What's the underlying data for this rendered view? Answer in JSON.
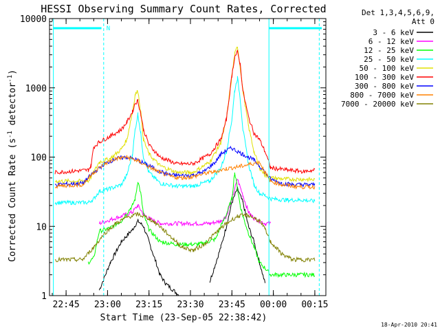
{
  "chart_data": {
    "type": "line",
    "title": "HESSI Observing Summary Count Rates, Corrected",
    "xlabel": "Start Time (23-Sep-05 22:38:42)",
    "ylabel_main": "Corrected Count Rate (s",
    "ylabel_sup1": "-1",
    "ylabel_mid": " detector",
    "ylabel_sup2": "-1",
    "ylabel_end": ")",
    "yscale": "log",
    "ylim": [
      1,
      10000
    ],
    "xlim_minutes": [
      -2,
      98
    ],
    "xtick_labels": [
      "22:45",
      "23:00",
      "23:15",
      "23:30",
      "23:45",
      "00:00",
      "00:15"
    ],
    "xtick_minutes": [
      4,
      19,
      34,
      49,
      64,
      79,
      94
    ],
    "ytick_labels": [
      "1",
      "10",
      "100",
      "1000",
      "10000"
    ],
    "ytick_values": [
      1,
      10,
      100,
      1000,
      10000
    ],
    "legend_header": [
      "Det 1,3,4,5,6,9,",
      "Att 0"
    ],
    "legend_position": "right",
    "footer_date": "18-Apr-2010 20:41",
    "night_label": "N",
    "series": [
      {
        "name": "3 - 6 keV",
        "color": "#000000",
        "x": [
          0,
          14,
          16,
          20,
          24,
          28,
          30,
          32,
          34,
          36,
          38,
          40,
          45,
          52,
          56,
          60,
          62,
          64,
          66,
          68,
          70,
          72,
          74,
          76,
          78
        ],
        "y": [
          null,
          null,
          1.2,
          3,
          6,
          9,
          12,
          10,
          6,
          3.5,
          2,
          1.5,
          1,
          null,
          1.6,
          5,
          10,
          22,
          35,
          22,
          10,
          6,
          3,
          1.5,
          null
        ]
      },
      {
        "name": "6 - 12 keV",
        "color": "#ff00ff",
        "x": [
          16,
          20,
          24,
          28,
          30,
          32,
          34,
          36,
          38,
          42,
          50,
          56,
          60,
          62,
          64,
          66,
          68,
          70,
          72,
          74,
          76,
          78
        ],
        "y": [
          11,
          12.5,
          14,
          16,
          20,
          15,
          13,
          12,
          11,
          11,
          11,
          11,
          12,
          14,
          25,
          48,
          28,
          16,
          13,
          12,
          11,
          11
        ]
      },
      {
        "name": "12 - 25 keV",
        "color": "#00ff00",
        "x": [
          12,
          14,
          16,
          20,
          24,
          28,
          29,
          30,
          31,
          32,
          34,
          38,
          44,
          52,
          58,
          60,
          62,
          64,
          65,
          66,
          67,
          68,
          70,
          72,
          74,
          76,
          78,
          80,
          84,
          90,
          94
        ],
        "y": [
          3,
          3.5,
          8.5,
          9.5,
          12,
          20,
          25,
          45,
          30,
          15,
          9,
          6,
          5.5,
          5.5,
          6.5,
          10,
          15,
          25,
          60,
          35,
          20,
          14,
          8,
          5,
          3,
          2.5,
          2,
          2,
          2,
          2,
          2
        ]
      },
      {
        "name": "25 - 50 keV",
        "color": "#00ffff",
        "x": [
          0,
          12,
          14,
          16,
          20,
          24,
          26,
          28,
          29,
          30,
          31,
          32,
          34,
          38,
          44,
          50,
          56,
          60,
          62,
          64,
          65,
          66,
          67,
          68,
          70,
          72,
          74,
          76,
          78,
          84,
          90,
          94
        ],
        "y": [
          22,
          22,
          25,
          32,
          35,
          40,
          55,
          110,
          250,
          420,
          220,
          100,
          60,
          42,
          38,
          38,
          45,
          70,
          120,
          350,
          900,
          1400,
          700,
          250,
          80,
          40,
          30,
          28,
          25,
          24,
          24,
          23
        ]
      },
      {
        "name": "50 - 100 keV",
        "color": "#e0e000",
        "x": [
          0,
          12,
          14,
          16,
          20,
          24,
          26,
          28,
          29,
          30,
          31,
          32,
          34,
          38,
          44,
          50,
          56,
          60,
          62,
          64,
          65,
          66,
          67,
          68,
          70,
          72,
          74,
          76,
          78,
          84,
          90,
          94
        ],
        "y": [
          45,
          45,
          60,
          85,
          95,
          130,
          180,
          450,
          800,
          900,
          450,
          180,
          110,
          75,
          60,
          60,
          85,
          160,
          350,
          1500,
          3000,
          4000,
          2000,
          900,
          280,
          120,
          70,
          55,
          50,
          48,
          48,
          47
        ]
      },
      {
        "name": "100 - 300 keV",
        "color": "#ff0000",
        "x": [
          0,
          12,
          13,
          14,
          16,
          20,
          24,
          26,
          28,
          29,
          30,
          31,
          32,
          34,
          38,
          44,
          50,
          56,
          60,
          62,
          64,
          65,
          66,
          67,
          68,
          70,
          72,
          74,
          76,
          78,
          84,
          90,
          94
        ],
        "y": [
          60,
          65,
          75,
          140,
          165,
          200,
          250,
          320,
          450,
          600,
          650,
          420,
          250,
          150,
          100,
          80,
          80,
          110,
          180,
          350,
          1500,
          2800,
          3300,
          2200,
          900,
          380,
          220,
          180,
          120,
          70,
          65,
          62,
          65
        ]
      },
      {
        "name": "300 - 800 keV",
        "color": "#0000ff",
        "x": [
          0,
          10,
          14,
          18,
          22,
          26,
          30,
          34,
          38,
          42,
          46,
          50,
          54,
          58,
          60,
          62,
          64,
          66,
          68,
          70,
          72,
          74,
          76,
          78,
          82,
          86,
          90,
          94
        ],
        "y": [
          40,
          42,
          60,
          80,
          95,
          100,
          90,
          75,
          62,
          55,
          54,
          55,
          62,
          85,
          110,
          125,
          135,
          120,
          110,
          100,
          90,
          75,
          60,
          48,
          42,
          40,
          40,
          40
        ]
      },
      {
        "name": "800 - 7000 keV",
        "color": "#ff8000",
        "x": [
          0,
          10,
          14,
          18,
          22,
          26,
          30,
          34,
          38,
          42,
          46,
          50,
          54,
          58,
          62,
          66,
          70,
          74,
          76,
          78,
          82,
          86,
          90,
          94
        ],
        "y": [
          38,
          40,
          60,
          80,
          95,
          100,
          88,
          72,
          60,
          52,
          50,
          52,
          58,
          62,
          68,
          72,
          78,
          85,
          60,
          45,
          40,
          38,
          37,
          37
        ]
      },
      {
        "name": "7000 - 20000 keV",
        "color": "#808000",
        "x": [
          0,
          10,
          14,
          18,
          22,
          26,
          30,
          34,
          38,
          42,
          46,
          50,
          54,
          58,
          62,
          66,
          70,
          74,
          76,
          78,
          82,
          86,
          90,
          94
        ],
        "y": [
          3.3,
          3.3,
          5,
          8,
          11,
          13.5,
          15,
          13,
          10,
          7,
          5,
          4.5,
          5.5,
          8,
          11,
          14,
          14.5,
          12,
          9,
          6,
          4,
          3.3,
          3.3,
          3.3
        ]
      }
    ]
  }
}
